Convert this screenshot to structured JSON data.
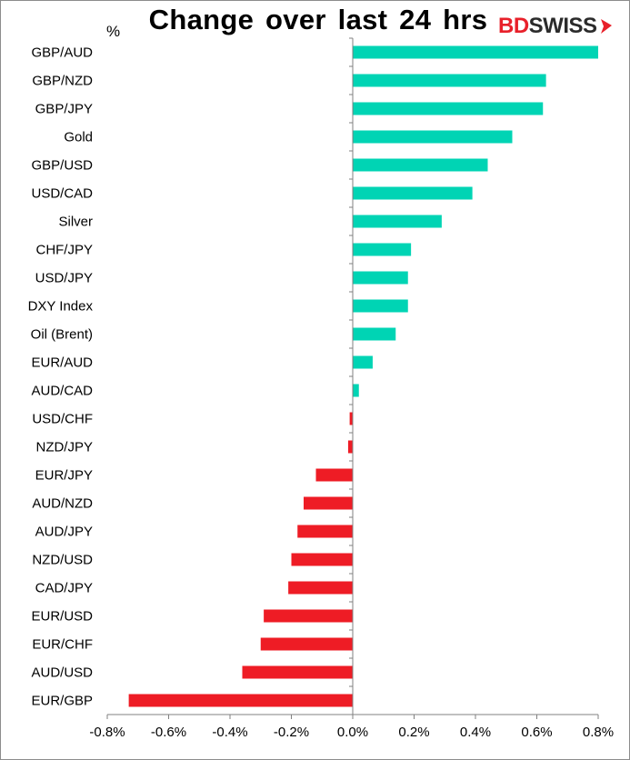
{
  "chart_data": {
    "type": "bar",
    "orientation": "horizontal",
    "title": "Change over last 24 hrs",
    "unit_label": "%",
    "categories": [
      "GBP/AUD",
      "GBP/NZD",
      "GBP/JPY",
      "Gold",
      "GBP/USD",
      "USD/CAD",
      "Silver",
      "CHF/JPY",
      "USD/JPY",
      "DXY Index",
      "Oil (Brent)",
      "EUR/AUD",
      "AUD/CAD",
      "USD/CHF",
      "NZD/JPY",
      "EUR/JPY",
      "AUD/NZD",
      "AUD/JPY",
      "NZD/USD",
      "CAD/JPY",
      "EUR/USD",
      "EUR/CHF",
      "AUD/USD",
      "EUR/GBP"
    ],
    "values": [
      0.8,
      0.63,
      0.62,
      0.52,
      0.44,
      0.39,
      0.29,
      0.19,
      0.18,
      0.18,
      0.14,
      0.065,
      0.02,
      -0.01,
      -0.015,
      -0.12,
      -0.16,
      -0.18,
      -0.2,
      -0.21,
      -0.29,
      -0.3,
      -0.36,
      -0.73
    ],
    "xlim": [
      -0.8,
      0.8
    ],
    "xticks": [
      -0.8,
      -0.6,
      -0.4,
      -0.2,
      0.0,
      0.2,
      0.4,
      0.6,
      0.8
    ],
    "xtick_labels": [
      "-0.8%",
      "-0.6%",
      "-0.4%",
      "-0.2%",
      "0.0%",
      "0.2%",
      "0.4%",
      "0.6%",
      "0.8%"
    ],
    "colors": {
      "positive": "#00d4b4",
      "negative": "#ee1c25",
      "axis": "#808080"
    },
    "grid": false,
    "legend": "none"
  },
  "logo": {
    "bd": "BD",
    "swiss": "SWISS",
    "icon": "arrow-icon"
  }
}
